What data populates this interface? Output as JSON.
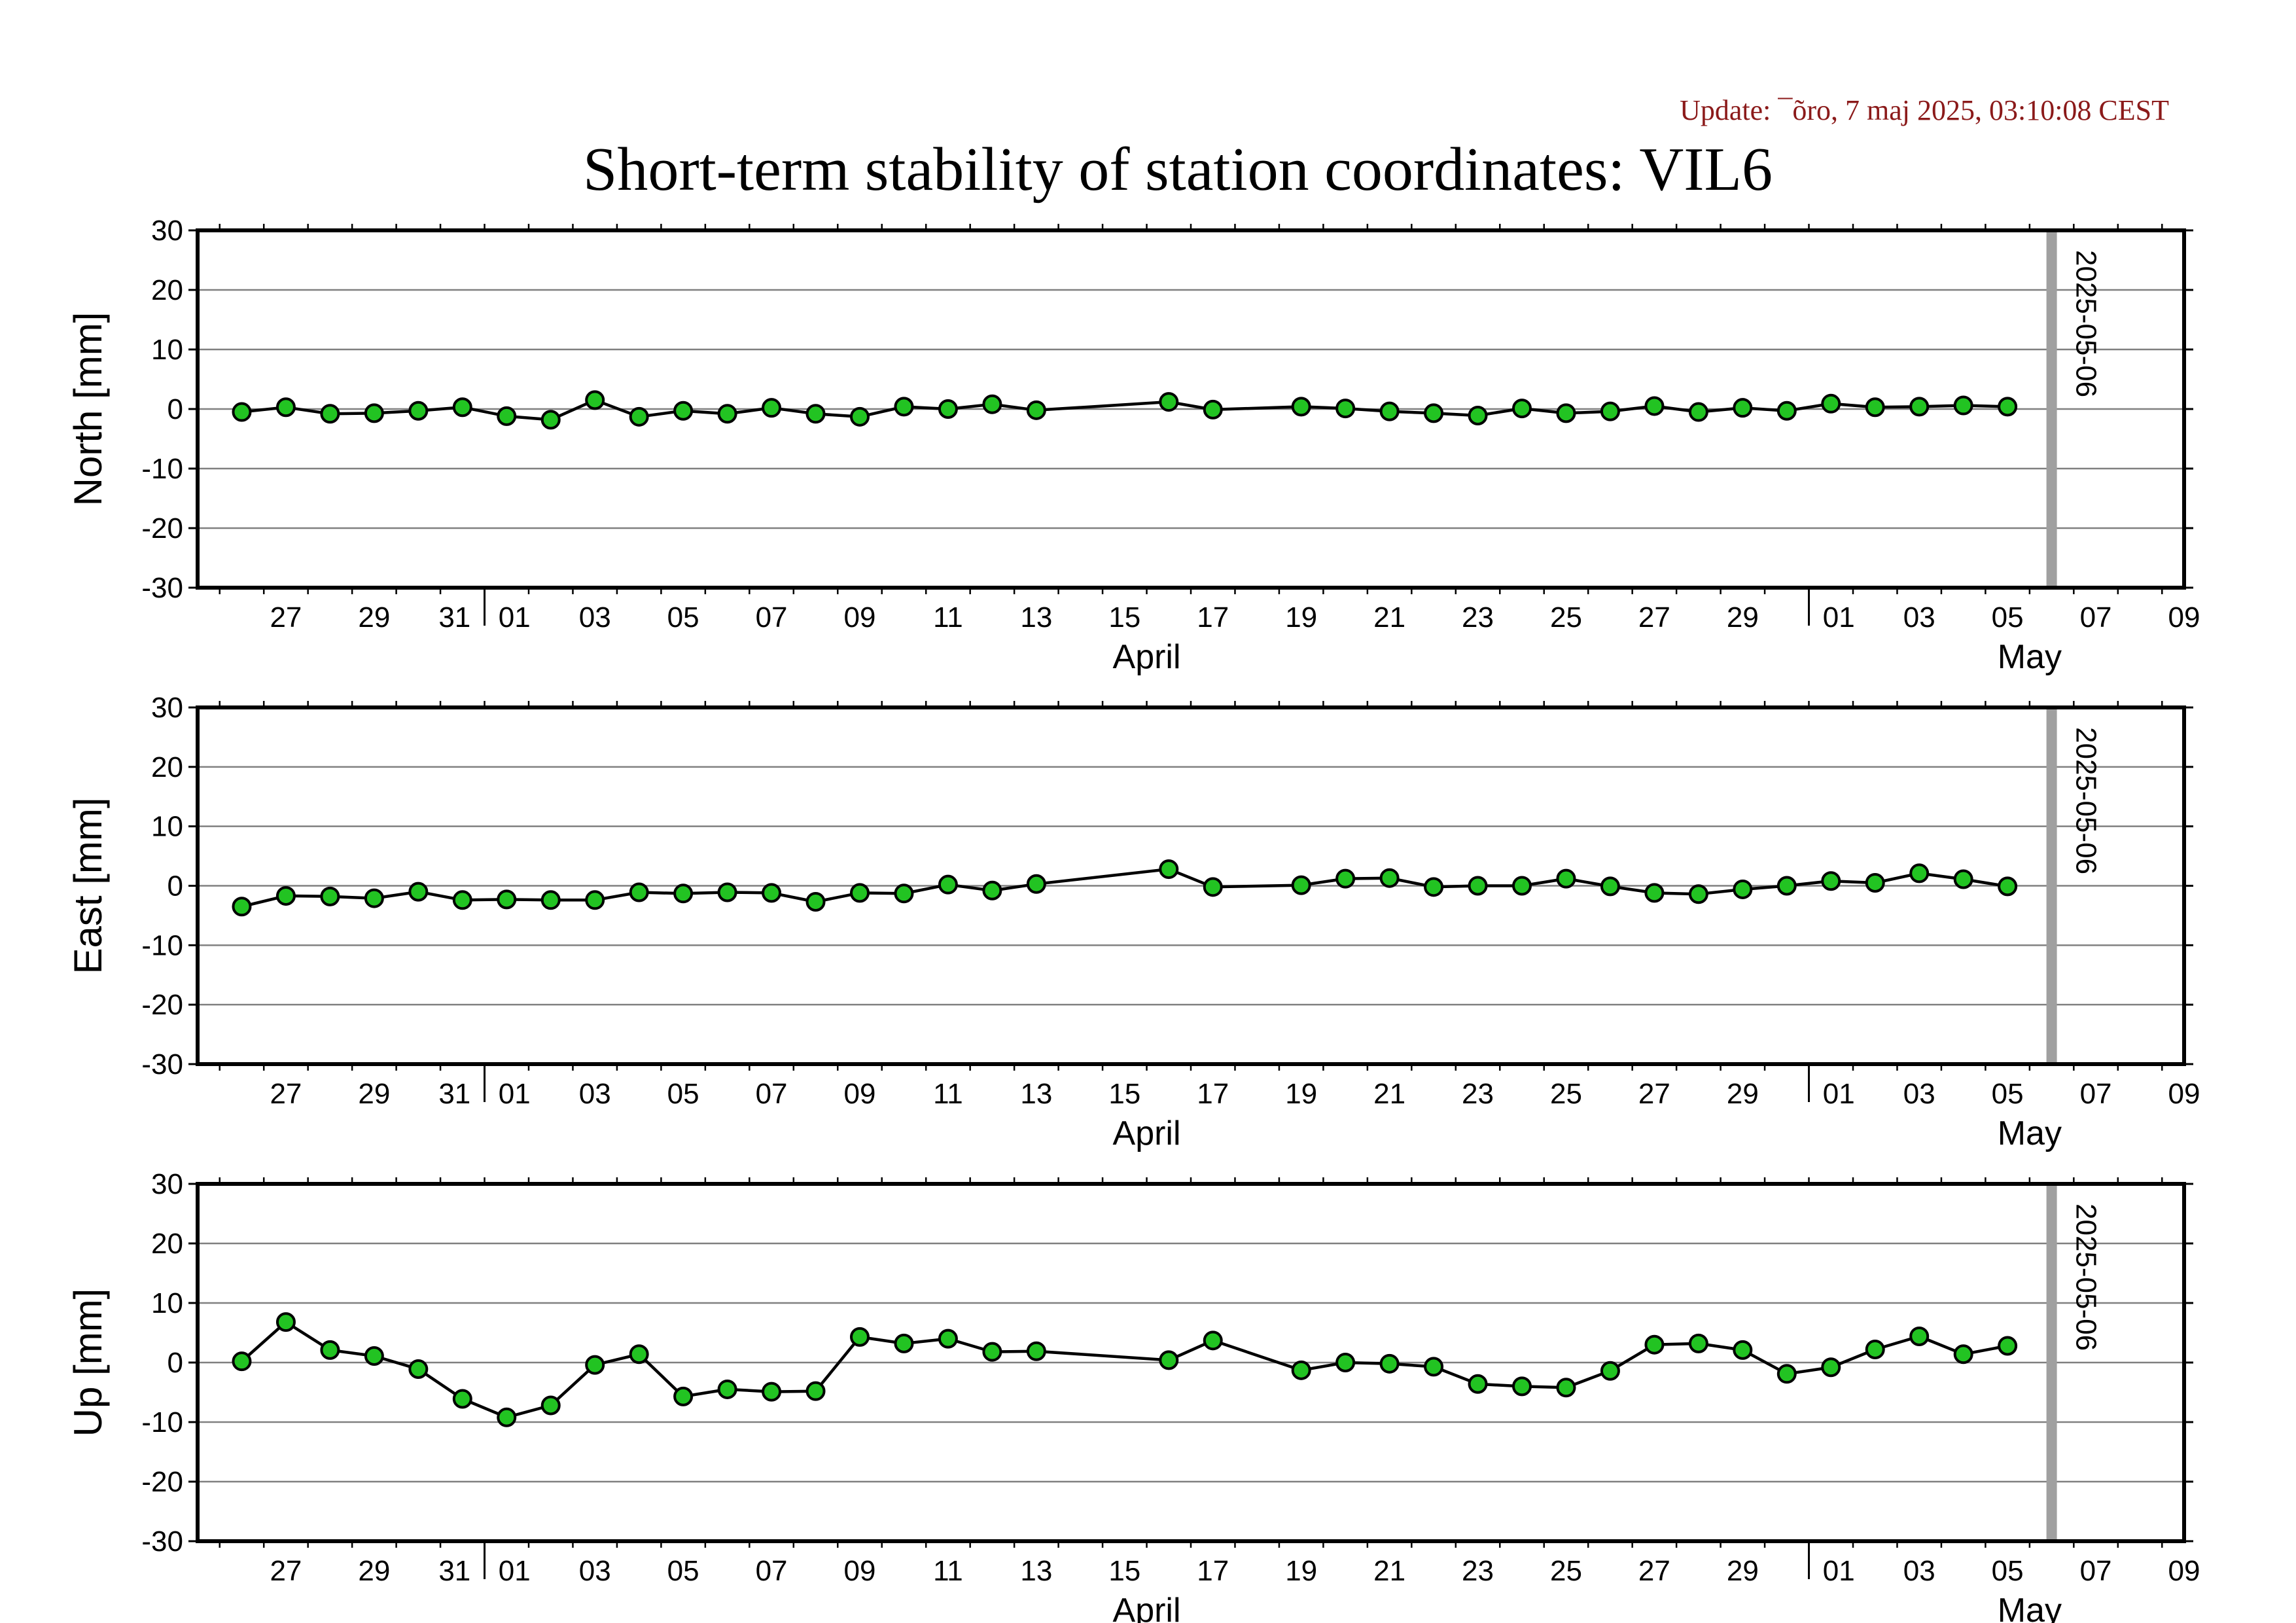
{
  "update_text": "Update: ¯õro, 7 maj 2025, 03:10:08 CEST",
  "title": "Short-term stability of station coordinates: VIL6",
  "colors": {
    "marker_fill": "#22c322",
    "marker_edge": "#000000",
    "line": "#000000",
    "grid": "#808080",
    "marker_band": "#a0a0a0",
    "update_text": "#8b1a1a"
  },
  "chart_data": [
    {
      "type": "line",
      "ylabel": "North [mm]",
      "ylim": [
        -30,
        30
      ],
      "yticks": [
        30,
        20,
        10,
        0,
        -10,
        -20,
        -30
      ],
      "xlim": [
        "2025-03-25T12:00",
        "2025-05-09T12:00"
      ],
      "x_ticks": [
        "27",
        "29",
        "31",
        "01",
        "03",
        "05",
        "07",
        "09",
        "11",
        "13",
        "15",
        "17",
        "19",
        "21",
        "23",
        "25",
        "27",
        "29",
        "01",
        "03",
        "05",
        "07",
        "09"
      ],
      "month_labels": [
        "April",
        "May"
      ],
      "vline_label": "2025-05-06",
      "grid": true,
      "x": [
        "2025-03-26",
        "2025-03-27",
        "2025-03-28",
        "2025-03-29",
        "2025-03-30",
        "2025-03-31",
        "2025-04-01",
        "2025-04-02",
        "2025-04-03",
        "2025-04-04",
        "2025-04-05",
        "2025-04-06",
        "2025-04-07",
        "2025-04-08",
        "2025-04-09",
        "2025-04-10",
        "2025-04-11",
        "2025-04-12",
        "2025-04-13",
        "2025-04-16",
        "2025-04-17",
        "2025-04-19",
        "2025-04-20",
        "2025-04-21",
        "2025-04-22",
        "2025-04-23",
        "2025-04-24",
        "2025-04-25",
        "2025-04-26",
        "2025-04-27",
        "2025-04-28",
        "2025-04-29",
        "2025-04-30",
        "2025-05-01",
        "2025-05-02",
        "2025-05-03",
        "2025-05-04",
        "2025-05-05"
      ],
      "values": [
        -0.5,
        0.3,
        -0.8,
        -0.7,
        -0.3,
        0.3,
        -1.2,
        -1.8,
        1.5,
        -1.3,
        -0.3,
        -0.8,
        0.2,
        -0.8,
        -1.3,
        0.4,
        0.0,
        0.8,
        -0.2,
        1.2,
        -0.1,
        0.4,
        0.1,
        -0.4,
        -0.7,
        -1.1,
        0.1,
        -0.7,
        -0.4,
        0.5,
        -0.5,
        0.2,
        -0.3,
        0.9,
        0.3,
        0.4,
        0.6,
        0.4
      ]
    },
    {
      "type": "line",
      "ylabel": "East [mm]",
      "ylim": [
        -30,
        30
      ],
      "yticks": [
        30,
        20,
        10,
        0,
        -10,
        -20,
        -30
      ],
      "xlim": [
        "2025-03-25T12:00",
        "2025-05-09T12:00"
      ],
      "x_ticks": [
        "27",
        "29",
        "31",
        "01",
        "03",
        "05",
        "07",
        "09",
        "11",
        "13",
        "15",
        "17",
        "19",
        "21",
        "23",
        "25",
        "27",
        "29",
        "01",
        "03",
        "05",
        "07",
        "09"
      ],
      "month_labels": [
        "April",
        "May"
      ],
      "vline_label": "2025-05-06",
      "grid": true,
      "x": [
        "2025-03-26",
        "2025-03-27",
        "2025-03-28",
        "2025-03-29",
        "2025-03-30",
        "2025-03-31",
        "2025-04-01",
        "2025-04-02",
        "2025-04-03",
        "2025-04-04",
        "2025-04-05",
        "2025-04-06",
        "2025-04-07",
        "2025-04-08",
        "2025-04-09",
        "2025-04-10",
        "2025-04-11",
        "2025-04-12",
        "2025-04-13",
        "2025-04-16",
        "2025-04-17",
        "2025-04-19",
        "2025-04-20",
        "2025-04-21",
        "2025-04-22",
        "2025-04-23",
        "2025-04-24",
        "2025-04-25",
        "2025-04-26",
        "2025-04-27",
        "2025-04-28",
        "2025-04-29",
        "2025-04-30",
        "2025-05-01",
        "2025-05-02",
        "2025-05-03",
        "2025-05-04",
        "2025-05-05"
      ],
      "values": [
        -3.5,
        -1.7,
        -1.8,
        -2.1,
        -1.0,
        -2.4,
        -2.3,
        -2.4,
        -2.4,
        -1.1,
        -1.3,
        -1.1,
        -1.2,
        -2.7,
        -1.2,
        -1.3,
        0.2,
        -0.8,
        0.3,
        2.8,
        -0.2,
        0.1,
        1.2,
        1.3,
        -0.2,
        0.0,
        0.0,
        1.2,
        -0.1,
        -1.2,
        -1.4,
        -0.6,
        0.0,
        0.8,
        0.5,
        2.1,
        1.1,
        -0.1
      ]
    },
    {
      "type": "line",
      "ylabel": "Up [mm]",
      "ylim": [
        -30,
        30
      ],
      "yticks": [
        30,
        20,
        10,
        0,
        -10,
        -20,
        -30
      ],
      "xlim": [
        "2025-03-25T12:00",
        "2025-05-09T12:00"
      ],
      "x_ticks": [
        "27",
        "29",
        "31",
        "01",
        "03",
        "05",
        "07",
        "09",
        "11",
        "13",
        "15",
        "17",
        "19",
        "21",
        "23",
        "25",
        "27",
        "29",
        "01",
        "03",
        "05",
        "07",
        "09"
      ],
      "month_labels": [
        "April",
        "May"
      ],
      "vline_label": "2025-05-06",
      "grid": true,
      "x": [
        "2025-03-26",
        "2025-03-27",
        "2025-03-28",
        "2025-03-29",
        "2025-03-30",
        "2025-03-31",
        "2025-04-01",
        "2025-04-02",
        "2025-04-03",
        "2025-04-04",
        "2025-04-05",
        "2025-04-06",
        "2025-04-07",
        "2025-04-08",
        "2025-04-09",
        "2025-04-10",
        "2025-04-11",
        "2025-04-12",
        "2025-04-13",
        "2025-04-16",
        "2025-04-17",
        "2025-04-19",
        "2025-04-20",
        "2025-04-21",
        "2025-04-22",
        "2025-04-23",
        "2025-04-24",
        "2025-04-25",
        "2025-04-26",
        "2025-04-27",
        "2025-04-28",
        "2025-04-29",
        "2025-04-30",
        "2025-05-01",
        "2025-05-02",
        "2025-05-03",
        "2025-05-04",
        "2025-05-05"
      ],
      "values": [
        0.2,
        6.8,
        2.1,
        1.1,
        -1.1,
        -6.1,
        -9.2,
        -7.2,
        -0.4,
        1.4,
        -5.7,
        -4.5,
        -4.9,
        -4.8,
        4.3,
        3.2,
        4.0,
        1.8,
        1.9,
        0.4,
        3.7,
        -1.3,
        0.0,
        -0.2,
        -0.7,
        -3.6,
        -4.0,
        -4.2,
        -1.4,
        3.0,
        3.2,
        2.1,
        -1.9,
        -0.8,
        2.2,
        4.4,
        1.4,
        2.8
      ]
    }
  ]
}
